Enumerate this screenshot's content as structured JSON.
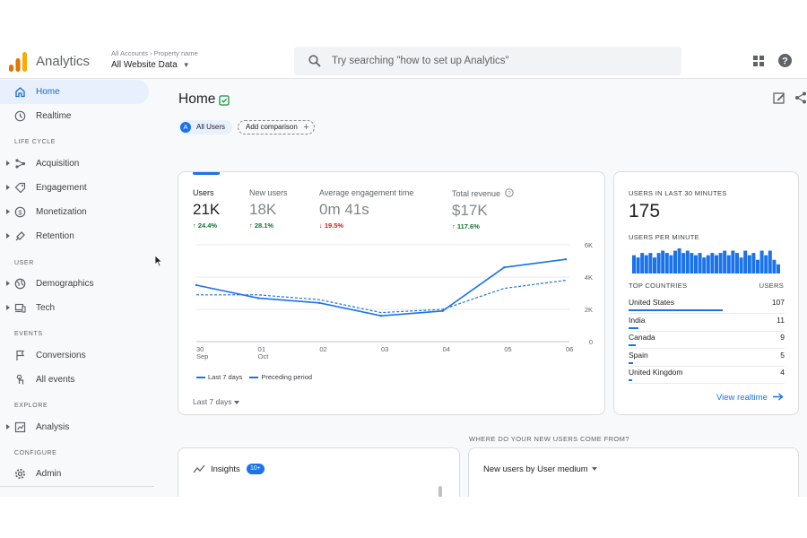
{
  "app": {
    "title": "Analytics",
    "crumb_account": "All Accounts",
    "crumb_property": "Property name",
    "property": "All Website Data"
  },
  "search": {
    "placeholder": "Try searching \"how to set up Analytics\""
  },
  "sidebar": {
    "items": [
      {
        "id": "home",
        "label": "Home",
        "icon": "home-icon",
        "active": true
      },
      {
        "id": "realtime",
        "label": "Realtime",
        "icon": "clock-icon"
      }
    ],
    "sections": {
      "lifecycle": {
        "title": "LIFE CYCLE",
        "items": [
          {
            "label": "Acquisition",
            "icon": "acquisition-icon"
          },
          {
            "label": "Engagement",
            "icon": "engagement-icon"
          },
          {
            "label": "Monetization",
            "icon": "monetization-icon"
          },
          {
            "label": "Retention",
            "icon": "retention-icon"
          }
        ]
      },
      "user": {
        "title": "USER",
        "items": [
          {
            "label": "Demographics",
            "icon": "globe-icon"
          },
          {
            "label": "Tech",
            "icon": "devices-icon"
          }
        ]
      },
      "events": {
        "title": "EVENTS",
        "items": [
          {
            "label": "Conversions",
            "icon": "flag-icon"
          },
          {
            "label": "All events",
            "icon": "touch-icon"
          }
        ]
      },
      "explore": {
        "title": "EXPLORE",
        "items": [
          {
            "label": "Analysis",
            "icon": "analysis-icon"
          }
        ]
      },
      "configure": {
        "title": "CONFIGURE",
        "items": [
          {
            "label": "Admin",
            "icon": "gear-icon"
          }
        ]
      }
    }
  },
  "page": {
    "title": "Home",
    "comparison_chip": "All Users",
    "comparison_avatar": "A",
    "add_comparison": "Add comparison"
  },
  "metrics": [
    {
      "label": "Users",
      "value": "21K",
      "change": "↑ 24.4%",
      "direction": "up",
      "selected": true
    },
    {
      "label": "New users",
      "value": "18K",
      "change": "↑ 28.1%",
      "direction": "up"
    },
    {
      "label": "Average engagement time",
      "value": "0m 41s",
      "change": "↓ 19.5%",
      "direction": "down"
    },
    {
      "label": "Total revenue",
      "value": "$17K",
      "change": "↑ 117.6%",
      "direction": "up"
    }
  ],
  "chart_data": {
    "type": "line",
    "x": [
      "30 Sep",
      "01 Oct",
      "02",
      "03",
      "04",
      "05",
      "06"
    ],
    "x_tick_lines": [
      [
        "30",
        "Sep"
      ],
      [
        "01",
        "Oct"
      ],
      [
        "02"
      ],
      [
        "03"
      ],
      [
        "04"
      ],
      [
        "05"
      ],
      [
        "06"
      ]
    ],
    "yticks": [
      "6K",
      "4K",
      "2K",
      "0"
    ],
    "ylim": [
      0,
      6000
    ],
    "series": [
      {
        "name": "Last 7 days",
        "style": "solid",
        "values": [
          3500,
          2700,
          2400,
          1600,
          1900,
          4600,
          5100
        ]
      },
      {
        "name": "Preceding period",
        "style": "dashed",
        "values": [
          2900,
          2900,
          2600,
          1800,
          2000,
          3300,
          3800
        ]
      }
    ],
    "color": "#1a73e8",
    "grid": true
  },
  "chart_footer": {
    "date_range": "Last 7 days"
  },
  "realtime": {
    "label": "USERS IN LAST 30 MINUTES",
    "value": "175",
    "per_minute_label": "USERS PER MINUTE",
    "per_minute": [
      8,
      7,
      9,
      8,
      9,
      7,
      9,
      10,
      9,
      8,
      10,
      11,
      9,
      10,
      9,
      8,
      9,
      7,
      8,
      9,
      8,
      9,
      10,
      8,
      10,
      9,
      7,
      10,
      8,
      9,
      6,
      10,
      8,
      10,
      6,
      4
    ],
    "countries_header": "TOP COUNTRIES",
    "users_header": "USERS",
    "countries": [
      {
        "name": "United States",
        "users": "107",
        "share": 1.0
      },
      {
        "name": "India",
        "users": "11",
        "share": 0.1
      },
      {
        "name": "Canada",
        "users": "9",
        "share": 0.08
      },
      {
        "name": "Spain",
        "users": "5",
        "share": 0.05
      },
      {
        "name": "United Kingdom",
        "users": "4",
        "share": 0.04
      }
    ],
    "view_link": "View realtime"
  },
  "insights": {
    "label": "Insights",
    "badge": "10+"
  },
  "new_users": {
    "question": "WHERE DO YOUR NEW USERS COME FROM?",
    "title": "New users by User medium"
  },
  "colors": {
    "accent": "#1a73e8",
    "active_bg": "#e8f0fe",
    "up": "#137333",
    "down": "#c5221f"
  }
}
